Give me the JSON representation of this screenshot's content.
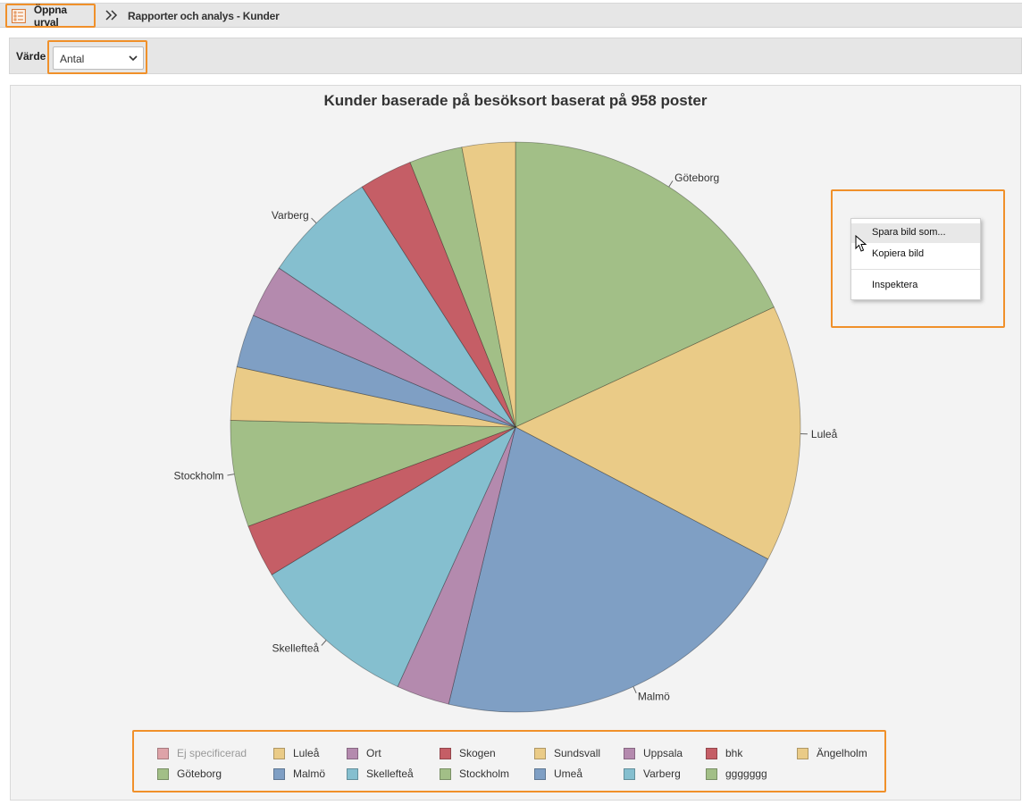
{
  "header": {
    "open_selection_label": "Öppna urval",
    "open_selection_icon": "list-icon",
    "breadcrumb_separator_icon": "double-chevron-right-icon",
    "breadcrumb": "Rapporter och analys - Kunder"
  },
  "filter": {
    "label": "Värde",
    "selected_value": "Antal"
  },
  "chart_data": {
    "type": "pie",
    "title": "Kunder baserade på besöksort baserat på 958 poster",
    "slices": [
      {
        "label": "Göteborg",
        "value": 18,
        "color": "#a2bf87",
        "show_label": true
      },
      {
        "label": "Luleå",
        "value": 14.5,
        "color": "#eacb87",
        "show_label": true
      },
      {
        "label": "Malmö",
        "value": 21,
        "color": "#7f9fc4",
        "show_label": true
      },
      {
        "label": "Uppsala",
        "value": 3,
        "color": "#b48aae",
        "show_label": false
      },
      {
        "label": "Skellefteå",
        "value": 9.5,
        "color": "#85bfcf",
        "show_label": true
      },
      {
        "label": "bhk",
        "value": 3,
        "color": "#c55e66",
        "show_label": false
      },
      {
        "label": "Stockholm",
        "value": 6,
        "color": "#a2bf87",
        "show_label": true
      },
      {
        "label": "Sundsvall",
        "value": 3,
        "color": "#eacb87",
        "show_label": false
      },
      {
        "label": "Umeå",
        "value": 3,
        "color": "#7f9fc4",
        "show_label": false
      },
      {
        "label": "Ort",
        "value": 3,
        "color": "#b48aae",
        "show_label": false
      },
      {
        "label": "Varberg",
        "value": 6.5,
        "color": "#85bfcf",
        "show_label": true
      },
      {
        "label": "Skogen",
        "value": 3,
        "color": "#c55e66",
        "show_label": false
      },
      {
        "label": "ggggggg",
        "value": 3,
        "color": "#a2bf87",
        "show_label": false
      },
      {
        "label": "Ängelholm",
        "value": 3,
        "color": "#eacb87",
        "show_label": false
      }
    ],
    "legend": [
      {
        "label": "Ej specificerad",
        "color": "#dea3a8",
        "muted": true
      },
      {
        "label": "Luleå",
        "color": "#eacb87",
        "muted": false
      },
      {
        "label": "Ort",
        "color": "#b48aae",
        "muted": false
      },
      {
        "label": "Skogen",
        "color": "#c55e66",
        "muted": false
      },
      {
        "label": "Sundsvall",
        "color": "#eacb87",
        "muted": false
      },
      {
        "label": "Uppsala",
        "color": "#b48aae",
        "muted": false
      },
      {
        "label": "bhk",
        "color": "#c55e66",
        "muted": false
      },
      {
        "label": "Ängelholm",
        "color": "#eacb87",
        "muted": false
      },
      {
        "label": "Göteborg",
        "color": "#a2bf87",
        "muted": false
      },
      {
        "label": "Malmö",
        "color": "#7f9fc4",
        "muted": false
      },
      {
        "label": "Skellefteå",
        "color": "#85bfcf",
        "muted": false
      },
      {
        "label": "Stockholm",
        "color": "#a2bf87",
        "muted": false
      },
      {
        "label": "Umeå",
        "color": "#7f9fc4",
        "muted": false
      },
      {
        "label": "Varberg",
        "color": "#85bfcf",
        "muted": false
      },
      {
        "label": "ggggggg",
        "color": "#a2bf87",
        "muted": false
      }
    ]
  },
  "context_menu": {
    "items": [
      "Spara bild som...",
      "Kopiera bild",
      "Inspektera"
    ]
  },
  "colors": {
    "highlight": "#f0902a",
    "panel_background": "#f3f3f3",
    "toolbar_background": "#e6e6e6"
  }
}
